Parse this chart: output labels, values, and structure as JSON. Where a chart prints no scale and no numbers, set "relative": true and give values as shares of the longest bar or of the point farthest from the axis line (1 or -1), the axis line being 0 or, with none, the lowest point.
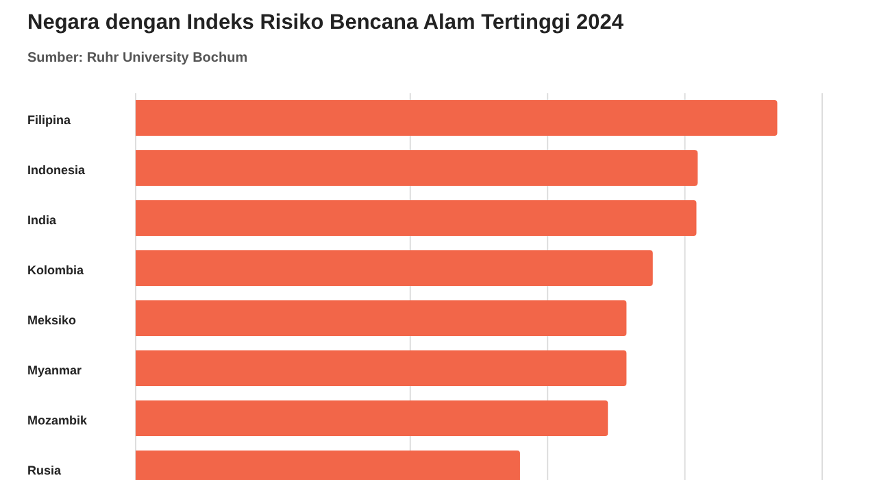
{
  "chart_data": {
    "type": "bar",
    "orientation": "horizontal",
    "relative": true,
    "title": "Negara dengan Indeks Risiko Bencana Alam Tertinggi 2024",
    "subtitle": "Sumber: Ruhr University Bochum",
    "categories": [
      "Filipina",
      "Indonesia",
      "India",
      "Kolombia",
      "Meksiko",
      "Myanmar",
      "Mozambik",
      "Rusia"
    ],
    "values": [
      1,
      0.876,
      0.874,
      0.806,
      0.765,
      0.765,
      0.736,
      0.599
    ],
    "color": "#f26649",
    "grid": "x"
  }
}
